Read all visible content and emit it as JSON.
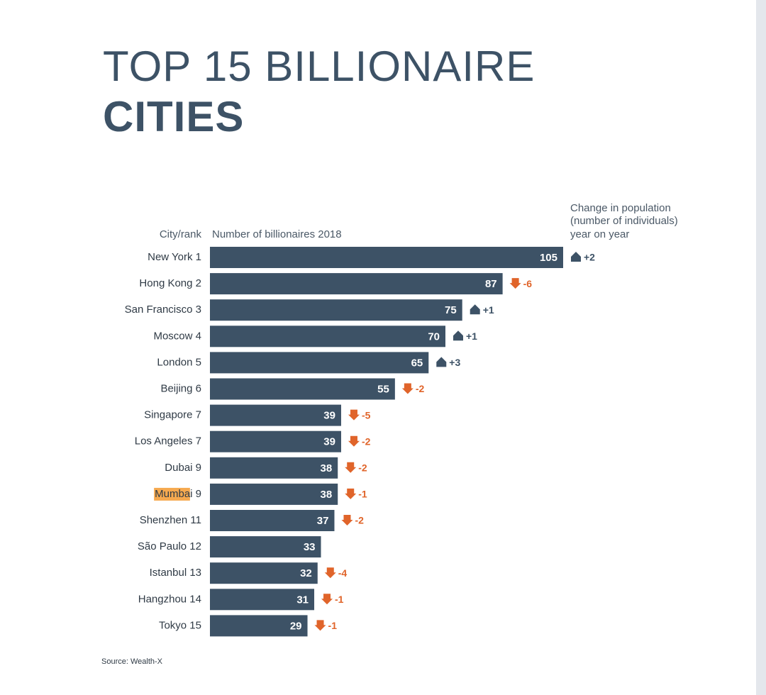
{
  "chart_data": {
    "type": "bar",
    "orientation": "horizontal",
    "title_lines": [
      "TOP 15 BILLIONAIRE",
      "CITIES"
    ],
    "category_header": "City/rank",
    "value_header": "Number of billionaires 2018",
    "change_header_lines": [
      "Change in population",
      "(number of individuals)",
      "year on year"
    ],
    "categories": [
      "New York 1",
      "Hong Kong 2",
      "San Francisco 3",
      "Moscow 4",
      "London 5",
      "Beijing 6",
      "Singapore 7",
      "Los Angeles 7",
      "Dubai 9",
      "Mumbai 9",
      "Shenzhen 11",
      "São Paulo 12",
      "Istanbul 13",
      "Hangzhou 14",
      "Tokyo 15"
    ],
    "values": [
      105,
      87,
      75,
      70,
      65,
      55,
      39,
      39,
      38,
      38,
      37,
      33,
      32,
      31,
      29
    ],
    "color": "#3d5266",
    "change": {
      "values": [
        2,
        -6,
        1,
        1,
        3,
        -2,
        -5,
        -2,
        -2,
        -1,
        -2,
        null,
        -4,
        -1,
        -1
      ],
      "value_labels": [
        "+2",
        "-6",
        "+1",
        "+1",
        "+3",
        "-2",
        "-5",
        "-2",
        "-2",
        "-1",
        "-2",
        null,
        "-4",
        "-1",
        "-1"
      ],
      "up_color": "#3d5266",
      "down_color": "#e0642a"
    },
    "highlight": {
      "index": 9,
      "color": "#f6a94f"
    },
    "source": "Source: Wealth-X"
  }
}
